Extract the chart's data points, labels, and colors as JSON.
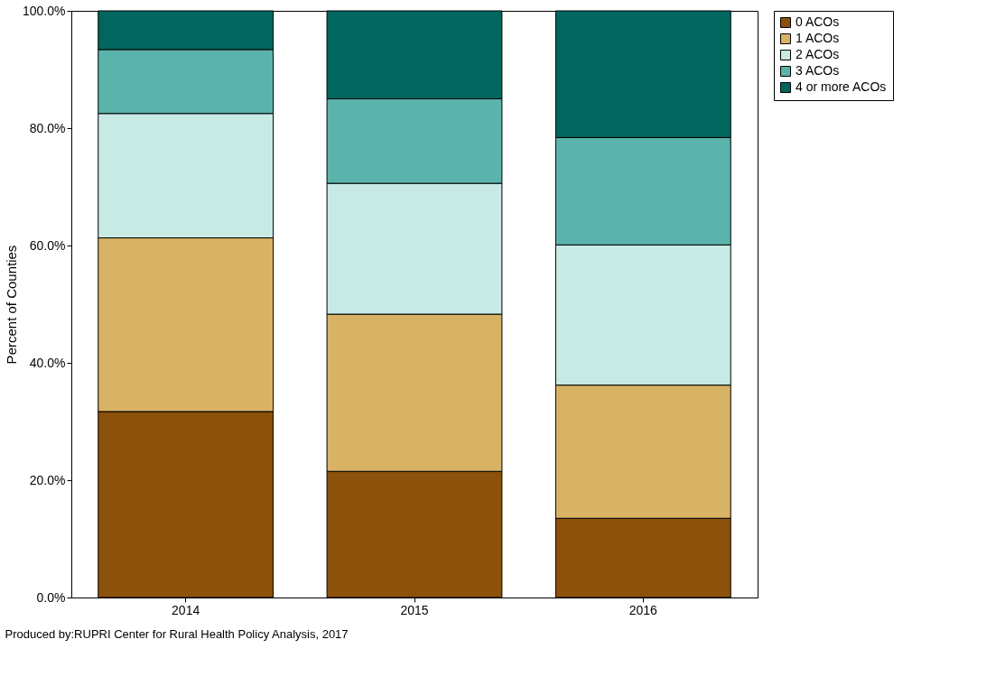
{
  "chart_data": {
    "type": "bar",
    "stacked": true,
    "categories": [
      "2014",
      "2015",
      "2016"
    ],
    "series": [
      {
        "name": "0 ACOs",
        "color": "#8c510a",
        "values": [
          31.7,
          21.5,
          13.5
        ]
      },
      {
        "name": "1 ACOs",
        "color": "#d8b365",
        "values": [
          29.6,
          26.8,
          22.7
        ]
      },
      {
        "name": "2 ACOs",
        "color": "#c7eae5",
        "values": [
          21.2,
          22.3,
          23.9
        ]
      },
      {
        "name": "3 ACOs",
        "color": "#5ab4ac",
        "values": [
          10.9,
          14.4,
          18.3
        ]
      },
      {
        "name": "4 or more ACOs",
        "color": "#01665e",
        "values": [
          6.6,
          15.0,
          21.6
        ]
      }
    ],
    "ylabel": "Percent of Counties",
    "ylim": [
      0,
      100
    ],
    "yticks": [
      {
        "value": 0,
        "label": "0.0%"
      },
      {
        "value": 20,
        "label": "20.0%"
      },
      {
        "value": 40,
        "label": "40.0%"
      },
      {
        "value": 60,
        "label": "60.0%"
      },
      {
        "value": 80,
        "label": "80.0%"
      },
      {
        "value": 100,
        "label": "100.0%"
      }
    ],
    "legend": "right",
    "grid": false,
    "annotations": [
      "Produced by:RUPRI Center for Rural Health Policy Analysis, 2017"
    ]
  }
}
